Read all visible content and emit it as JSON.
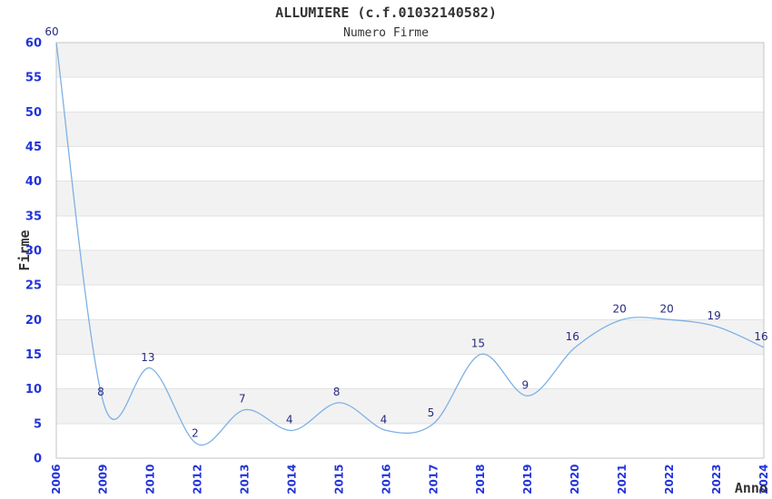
{
  "chart_data": {
    "type": "line",
    "title": "ALLUMIERE (c.f.01032140582)",
    "subtitle": "Numero Firme",
    "xlabel": "Anno",
    "ylabel": "Firme",
    "categories": [
      "2006",
      "2009",
      "2010",
      "2012",
      "2013",
      "2014",
      "2015",
      "2016",
      "2017",
      "2018",
      "2019",
      "2020",
      "2021",
      "2022",
      "2023",
      "2024"
    ],
    "values": [
      60,
      8,
      13,
      2,
      7,
      4,
      8,
      4,
      5,
      15,
      9,
      16,
      20,
      20,
      19,
      16
    ],
    "ylim": [
      0,
      60
    ],
    "yticks": [
      0,
      5,
      10,
      15,
      20,
      25,
      30,
      35,
      40,
      45,
      50,
      55,
      60
    ],
    "grid": "alternating-horizontal-bands",
    "legend_position": "none",
    "data_labels": true,
    "colors": {
      "line": "#7eb1e4",
      "axis_tick_text": "#2233d9",
      "point_label_text": "#262a80",
      "band_fill": "#f2f2f2",
      "gridline": "#e2e2e2",
      "frame": "#c6c6c6",
      "heading_text": "#333333"
    }
  }
}
